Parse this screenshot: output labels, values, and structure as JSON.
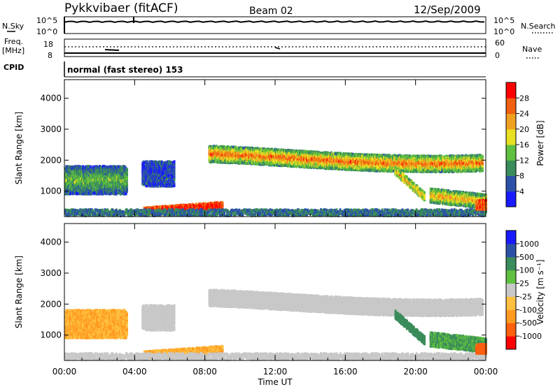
{
  "header": {
    "station": "Pykkvibaer (fitACF)",
    "beam": "Beam 02",
    "date": "12/Sep/2009"
  },
  "strips": {
    "nsky_label": "N.Sky",
    "nsky_ticks": [
      "10^5",
      "10^0"
    ],
    "nsearch_label": "N.Search",
    "freq_label_line1": "Freq.",
    "freq_label_line2": "[MHz]",
    "freq_ticks": [
      "18",
      "8"
    ],
    "nave_label": "Nave",
    "nave_ticks": [
      "60",
      "0"
    ],
    "cpid_label": "CPID",
    "cpid_text": "normal (fast stereo) 153"
  },
  "colors": {
    "power_scale": [
      "#1a1aff",
      "#2c52a8",
      "#3a8c5a",
      "#60c040",
      "#e8e020",
      "#f0a020",
      "#f06010",
      "#ff0000"
    ],
    "velocity_scale": [
      "#ff0000",
      "#ff6010",
      "#ff9a20",
      "#ffc040",
      "#c8c8c8",
      "#60c040",
      "#3a8c5a",
      "#2c52a8",
      "#1a1aff"
    ],
    "ground_scatter": "#c8c8c8"
  },
  "chart_data": [
    {
      "type": "heatmap",
      "name": "Power",
      "xlabel": "",
      "ylabel": "Slant Range [km]",
      "x_ticks": [
        "00:00",
        "04:00",
        "08:00",
        "12:00",
        "16:00",
        "20:00",
        "00:00"
      ],
      "x_range_hours": [
        0,
        24
      ],
      "y_ticks": [
        1000,
        2000,
        3000,
        4000
      ],
      "y_range_km": [
        180,
        4600
      ],
      "colorbar_label": "Power [dB]",
      "colorbar_ticks": [
        4,
        8,
        12,
        16,
        20,
        24,
        28
      ],
      "colorbar_range": [
        0,
        30
      ]
    },
    {
      "type": "heatmap",
      "name": "Velocity",
      "xlabel": "Time UT",
      "ylabel": "Slant Range [km]",
      "x_ticks": [
        "00:00",
        "04:00",
        "08:00",
        "12:00",
        "16:00",
        "20:00",
        "00:00"
      ],
      "x_range_hours": [
        0,
        24
      ],
      "y_ticks": [
        1000,
        2000,
        3000,
        4000
      ],
      "y_range_km": [
        180,
        4600
      ],
      "colorbar_label": "Velocity [m s⁻¹]",
      "colorbar_ticks": [
        1000,
        500,
        100,
        25,
        -25,
        -100,
        -500,
        -1000
      ]
    }
  ]
}
